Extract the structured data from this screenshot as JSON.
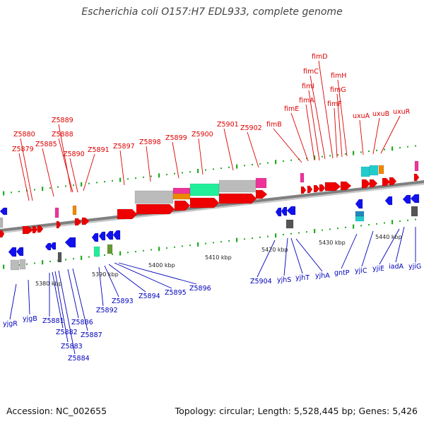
{
  "title": "Escherichia coli O157:H7 EDL933, complete genome",
  "footer": {
    "accession": "Accession: NC_002655",
    "stats": "Topology: circular; Length: 5,528,445 bp; Genes: 5,426"
  },
  "colors": {
    "forward_label": "#dd0000",
    "reverse_label": "#0000bb",
    "forward_gene": "#ee0000",
    "reverse_gene": "#1111ee",
    "backbone": "#808080",
    "tick": "#22aa22",
    "gray_gene": "#bbbbbb",
    "cyan_gene": "#22cccc",
    "pink_gene": "#ee3399",
    "orange_gene": "#ee8800",
    "teal_gene": "#22ee99",
    "olive_gene": "#669933",
    "dark_gene": "#555555"
  },
  "kbp_labels": [
    "5380 kbp",
    "5390 kbp",
    "5400 kbp",
    "5410 kbp",
    "5420 kbp",
    "5430 kbp",
    "5440 kbp"
  ],
  "forward_genes": [
    "Z5880",
    "Z5879",
    "Z5885",
    "Z5889",
    "Z5888",
    "Z5890",
    "Z5891",
    "Z5897",
    "Z5898",
    "Z5899",
    "Z5900",
    "Z5901",
    "Z5902",
    "fimB",
    "fimE",
    "fimA",
    "fimI",
    "fimC",
    "fimD",
    "fimF",
    "fimG",
    "fimH",
    "uxuA",
    "uxuB",
    "uxuR"
  ],
  "reverse_genes": [
    "yjgR",
    "yjgB",
    "Z5881",
    "Z5882",
    "Z5883",
    "Z5884",
    "Z5886",
    "Z5887",
    "Z5892",
    "Z5893",
    "Z5894",
    "Z5895",
    "Z5896",
    "Z5904",
    "yjhS",
    "yjhT",
    "yjhA",
    "gntP",
    "yjiC",
    "yjiE",
    "iadA",
    "yjiG"
  ]
}
